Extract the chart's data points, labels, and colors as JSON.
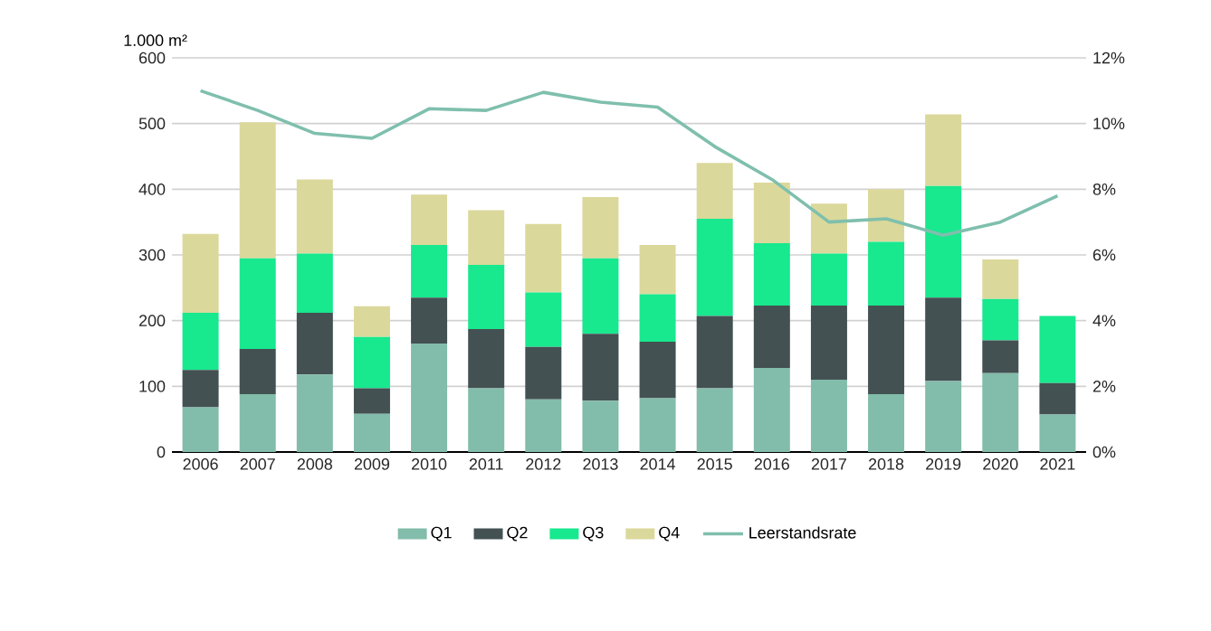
{
  "chart_data": {
    "type": "bar",
    "stacked": true,
    "ylabel": "1.000 m²",
    "categories": [
      "2006",
      "2007",
      "2008",
      "2009",
      "2010",
      "2011",
      "2012",
      "2013",
      "2014",
      "2015",
      "2016",
      "2017",
      "2018",
      "2019",
      "2020",
      "2021"
    ],
    "series": [
      {
        "name": "Q1",
        "color": "#82bcaa",
        "values": [
          68,
          88,
          118,
          58,
          165,
          97,
          80,
          78,
          82,
          97,
          128,
          110,
          88,
          108,
          120,
          57
        ]
      },
      {
        "name": "Q2",
        "color": "#435153",
        "values": [
          57,
          69,
          94,
          39,
          70,
          90,
          80,
          102,
          86,
          110,
          95,
          113,
          135,
          127,
          50,
          48
        ]
      },
      {
        "name": "Q3",
        "color": "#18e88e",
        "values": [
          87,
          138,
          90,
          78,
          80,
          98,
          83,
          115,
          72,
          148,
          95,
          79,
          97,
          170,
          63,
          102
        ]
      },
      {
        "name": "Q4",
        "color": "#dbd89b",
        "values": [
          120,
          207,
          113,
          47,
          77,
          83,
          104,
          93,
          75,
          85,
          92,
          76,
          80,
          109,
          60,
          null
        ]
      },
      {
        "name": "Leerstandsrate",
        "type": "line",
        "axis": "y2",
        "color": "#7fbfad",
        "marker": "none",
        "line_style": "solid",
        "values": [
          11.0,
          10.4,
          9.7,
          9.55,
          10.45,
          10.4,
          10.95,
          10.65,
          10.5,
          9.3,
          8.3,
          7.0,
          7.1,
          6.6,
          7.0,
          7.8
        ]
      }
    ],
    "ylim": [
      0,
      600
    ],
    "yticks": [
      0,
      100,
      200,
      300,
      400,
      500,
      600
    ],
    "y2lim": [
      0,
      12
    ],
    "y2ticks": [
      {
        "value": 0,
        "label": "0%"
      },
      {
        "value": 2,
        "label": "2%"
      },
      {
        "value": 4,
        "label": "4%"
      },
      {
        "value": 6,
        "label": "6%"
      },
      {
        "value": 8,
        "label": "8%"
      },
      {
        "value": 10,
        "label": "10%"
      },
      {
        "value": 12,
        "label": "12%"
      }
    ],
    "grid": "y",
    "legend": "bottom"
  }
}
